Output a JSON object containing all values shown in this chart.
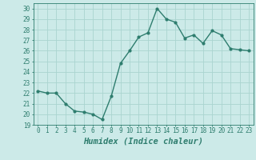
{
  "x": [
    0,
    1,
    2,
    3,
    4,
    5,
    6,
    7,
    8,
    9,
    10,
    11,
    12,
    13,
    14,
    15,
    16,
    17,
    18,
    19,
    20,
    21,
    22,
    23
  ],
  "y": [
    22.2,
    22.0,
    22.0,
    21.0,
    20.3,
    20.2,
    20.0,
    19.5,
    21.7,
    24.8,
    26.0,
    27.3,
    27.7,
    30.0,
    29.0,
    28.7,
    27.2,
    27.5,
    26.7,
    27.9,
    27.5,
    26.2,
    26.1,
    26.0
  ],
  "line_color": "#2e7d6e",
  "marker": "o",
  "marker_size": 2,
  "line_width": 1.0,
  "bg_color": "#cceae8",
  "grid_color": "#aad4d0",
  "xlabel": "Humidex (Indice chaleur)",
  "ylabel": "",
  "ylim": [
    19,
    30.5
  ],
  "xlim": [
    -0.5,
    23.5
  ],
  "yticks": [
    19,
    20,
    21,
    22,
    23,
    24,
    25,
    26,
    27,
    28,
    29,
    30
  ],
  "xticks": [
    0,
    1,
    2,
    3,
    4,
    5,
    6,
    7,
    8,
    9,
    10,
    11,
    12,
    13,
    14,
    15,
    16,
    17,
    18,
    19,
    20,
    21,
    22,
    23
  ],
  "tick_label_fontsize": 5.5,
  "xlabel_fontsize": 7.5,
  "tick_color": "#2e7d6e",
  "label_color": "#2e7d6e"
}
